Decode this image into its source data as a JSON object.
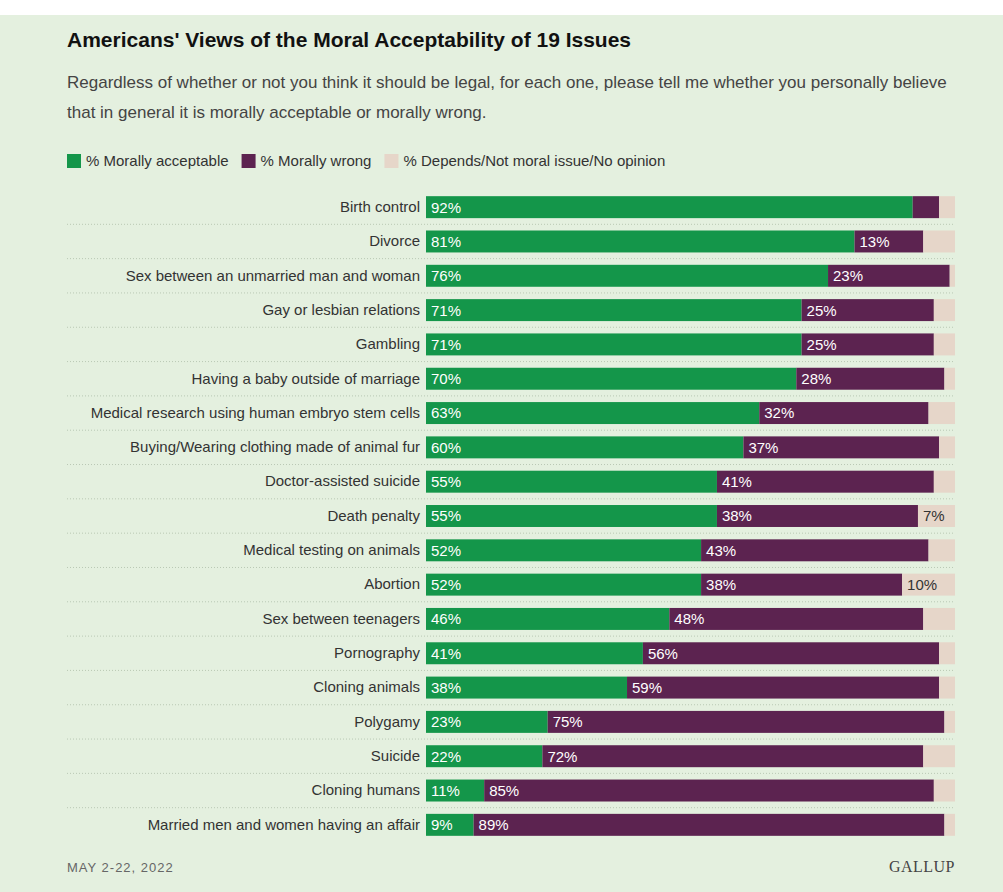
{
  "chart_data": {
    "type": "bar",
    "orientation": "horizontal",
    "stacked": true,
    "data_labels": true,
    "tick_labels": "y",
    "grid": false,
    "title": "Americans' Views of the Moral Acceptability of 19 Issues",
    "subtitle": "Regardless of whether or not you think it should be legal, for each one, please tell me whether you personally believe that in general it is morally acceptable or morally wrong.",
    "note": "MAY 2-22, 2022",
    "source": "GALLUP",
    "xlim": [
      0,
      100
    ],
    "categories": [
      "Birth control",
      "Divorce",
      "Sex between an unmarried man and woman",
      "Gay or lesbian relations",
      "Gambling",
      "Having a baby outside of marriage",
      "Medical research using human embryo stem cells",
      "Buying/Wearing clothing made of animal fur",
      "Doctor-assisted suicide",
      "Death penalty",
      "Medical testing on animals",
      "Abortion",
      "Sex between teenagers",
      "Pornography",
      "Cloning animals",
      "Polygamy",
      "Suicide",
      "Cloning humans",
      "Married men and women having an affair"
    ],
    "series": [
      {
        "name": "% Morally acceptable",
        "color": "#14964a",
        "values": [
          92,
          81,
          76,
          71,
          71,
          70,
          63,
          60,
          55,
          55,
          52,
          52,
          46,
          41,
          38,
          23,
          22,
          11,
          9
        ],
        "value_labels": [
          "92%",
          "81%",
          "76%",
          "71%",
          "71%",
          "70%",
          "63%",
          "60%",
          "55%",
          "55%",
          "52%",
          "52%",
          "46%",
          "41%",
          "38%",
          "23%",
          "22%",
          "11%",
          "9%"
        ]
      },
      {
        "name": "% Morally wrong",
        "color": "#5c2350",
        "values": [
          5,
          13,
          23,
          25,
          25,
          28,
          32,
          37,
          41,
          38,
          43,
          38,
          48,
          56,
          59,
          75,
          72,
          85,
          89
        ],
        "value_labels": [
          null,
          "13%",
          "23%",
          "25%",
          "25%",
          "28%",
          "32%",
          "37%",
          "41%",
          "38%",
          "43%",
          "38%",
          "48%",
          "56%",
          "59%",
          "75%",
          "72%",
          "85%",
          "89%"
        ]
      },
      {
        "name": "% Depends/Not moral issue/No opinion",
        "color": "#e6d6c9",
        "values": [
          3,
          6,
          1,
          4,
          4,
          2,
          5,
          3,
          4,
          7,
          5,
          10,
          6,
          3,
          3,
          2,
          6,
          4,
          2
        ],
        "value_labels": [
          null,
          null,
          null,
          null,
          null,
          null,
          null,
          null,
          null,
          "7%",
          null,
          "10%",
          null,
          null,
          null,
          null,
          null,
          null,
          null
        ]
      }
    ]
  }
}
